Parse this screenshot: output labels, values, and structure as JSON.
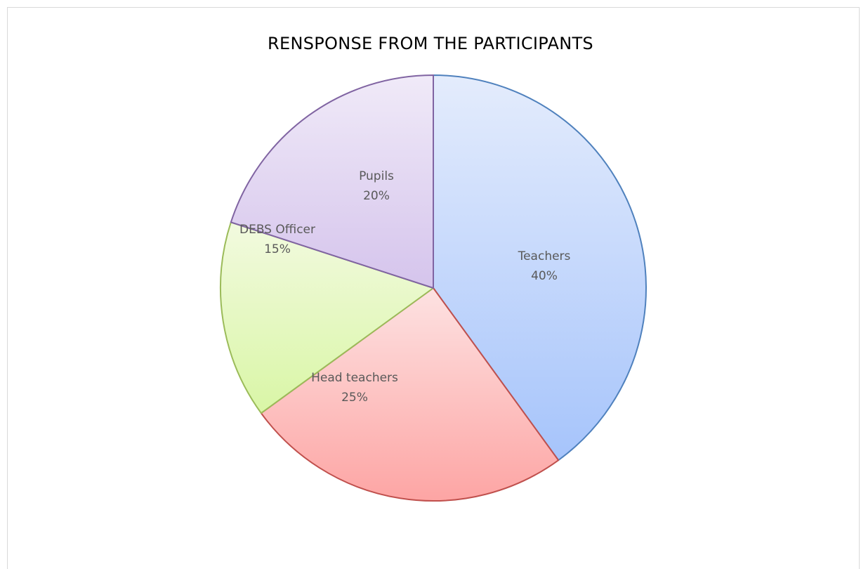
{
  "chart_data": {
    "type": "pie",
    "title": "RENSPONSE  FROM THE PARTICIPANTS",
    "start_angle_deg": 90,
    "direction": "clockwise",
    "slices": [
      {
        "name": "Teachers",
        "value": 40,
        "value_label": "40%",
        "border": "#4f81bd",
        "fill_light": "#e4ecfc",
        "fill_dark": "#a6c4fb"
      },
      {
        "name": "Head teachers",
        "value": 25,
        "value_label": "25%",
        "border": "#c0504d",
        "fill_light": "#fde2e2",
        "fill_dark": "#fda5a4"
      },
      {
        "name": "DEBS Officer",
        "value": 15,
        "value_label": "15%",
        "border": "#9bbb59",
        "fill_light": "#f2fadf",
        "fill_dark": "#d9f6a6"
      },
      {
        "name": "Pupils",
        "value": 20,
        "value_label": "20%",
        "border": "#8064a2",
        "fill_light": "#f0eaf8",
        "fill_dark": "#d5c4ec"
      }
    ]
  }
}
